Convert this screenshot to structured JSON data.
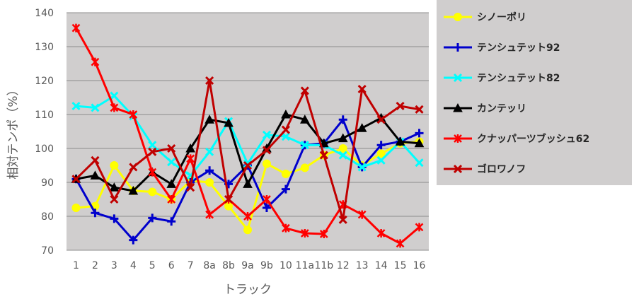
{
  "chart_data": {
    "type": "line",
    "xlabel": "トラック",
    "ylabel": "相対テンポ（%）",
    "ylim": [
      70,
      140
    ],
    "yticks": [
      70,
      80,
      90,
      100,
      110,
      120,
      130,
      140
    ],
    "categories": [
      "1",
      "2",
      "3",
      "4",
      "5",
      "6",
      "7",
      "8a",
      "8b",
      "9a",
      "9b",
      "10",
      "11a",
      "11b",
      "12",
      "13",
      "14",
      "15",
      "16"
    ],
    "grid": true,
    "legend_position": "right",
    "plot_background": "#d0cece",
    "series": [
      {
        "name": "シノーポリ",
        "color": "#ffff00",
        "marker": "circle",
        "values": [
          82.5,
          83,
          95,
          87.5,
          87.2,
          85,
          90.5,
          90,
          83,
          76,
          95.5,
          92.5,
          94.3,
          98,
          100,
          95,
          98.5,
          101.5,
          102
        ]
      },
      {
        "name": "テンシュテット92",
        "color": "#0000cc",
        "marker": "plus",
        "values": [
          91,
          81,
          79.3,
          73,
          79.5,
          78.5,
          90,
          93.5,
          89.5,
          95,
          82.5,
          88,
          101,
          101.5,
          108.5,
          94.5,
          101,
          102,
          104.5
        ]
      },
      {
        "name": "テンシュテット82",
        "color": "#00ffff",
        "marker": "x",
        "values": [
          112.5,
          112,
          115.5,
          109.5,
          101,
          96,
          92,
          99,
          108,
          95.5,
          104,
          103.5,
          101,
          101,
          98,
          94.5,
          96.5,
          102,
          95.8
        ]
      },
      {
        "name": "カンテッリ",
        "color": "#000000",
        "marker": "triangle",
        "values": [
          91,
          92,
          88.5,
          87.5,
          93,
          89.5,
          100,
          108.5,
          107.5,
          89.5,
          100,
          110,
          108.5,
          101.5,
          103,
          106,
          109,
          102,
          101.5
        ]
      },
      {
        "name": "クナッパーツブッシュ62",
        "color": "#ff0000",
        "marker": "asterisk",
        "values": [
          135.5,
          125.5,
          112,
          110,
          93,
          85,
          97,
          80.5,
          85,
          80,
          85,
          76.5,
          75,
          74.8,
          83.5,
          80.5,
          75,
          72,
          76.8
        ]
      },
      {
        "name": "ゴロワノフ",
        "color": "#c00000",
        "marker": "x",
        "values": [
          91,
          96.5,
          85,
          94.5,
          99,
          100,
          88.5,
          120,
          85,
          95,
          99.5,
          105.5,
          117,
          98,
          79,
          117.5,
          108.5,
          112.5,
          111.5
        ]
      }
    ]
  }
}
